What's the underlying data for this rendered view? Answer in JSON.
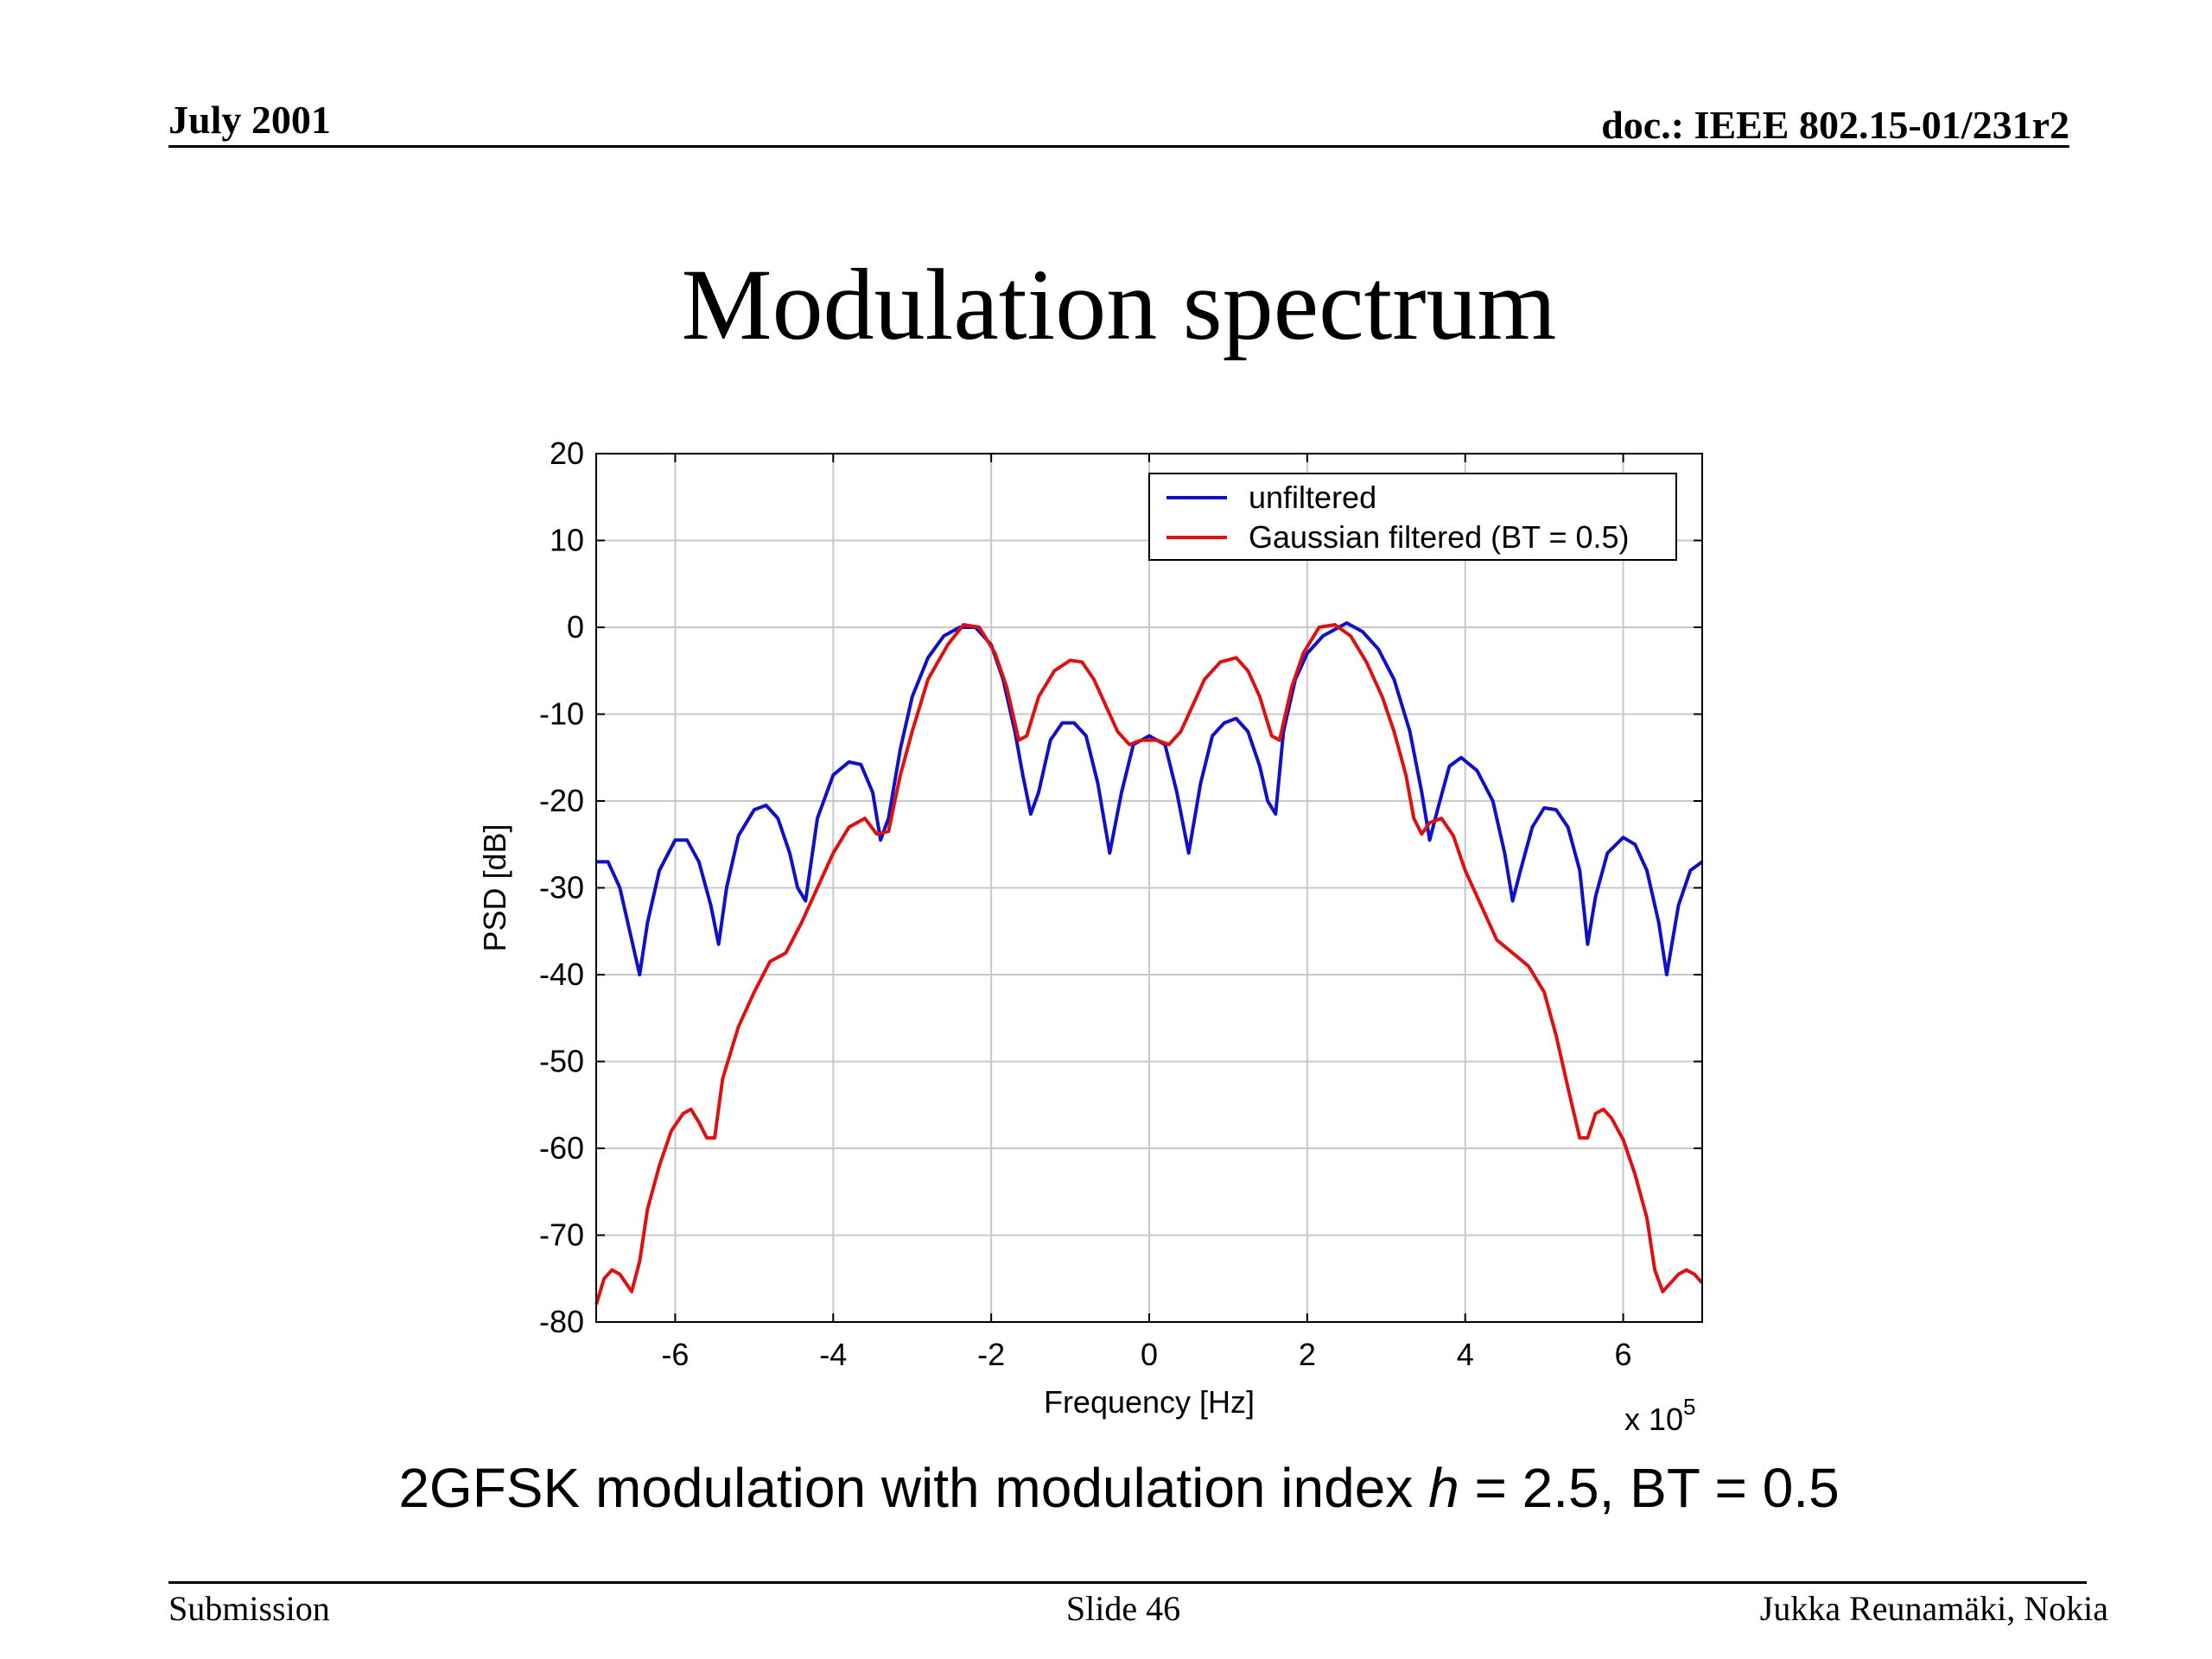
{
  "slide": {
    "header_left": "July 2001",
    "header_right": "doc.: IEEE 802.15-01/231r2",
    "title": "Modulation spectrum",
    "caption_before": "2GFSK modulation with modulation index ",
    "caption_var": "h",
    "caption_after": " = 2.5, BT = 0.5",
    "footer_left": "Submission",
    "footer_center": "Slide 46",
    "footer_right": "Jukka Reunamäki, Nokia"
  },
  "chart_data": {
    "type": "line",
    "title": "",
    "xlabel": "Frequency [Hz]",
    "ylabel": "PSD [dB]",
    "x_multiplier": "x 10",
    "x_multiplier_exp": "5",
    "xlim": [
      -7,
      7
    ],
    "ylim": [
      -80,
      20
    ],
    "xticks": [
      -6,
      -4,
      -2,
      0,
      2,
      4,
      6
    ],
    "yticks": [
      20,
      10,
      0,
      -10,
      -20,
      -30,
      -40,
      -50,
      -60,
      -70,
      -80
    ],
    "grid": true,
    "legend_position": "top-right",
    "series": [
      {
        "name": "unfiltered",
        "color": "#1010c8",
        "points": [
          [
            -7.0,
            -27
          ],
          [
            -6.85,
            -27
          ],
          [
            -6.7,
            -30
          ],
          [
            -6.55,
            -36
          ],
          [
            -6.45,
            -40
          ],
          [
            -6.35,
            -34
          ],
          [
            -6.2,
            -28
          ],
          [
            -6.0,
            -24.5
          ],
          [
            -5.85,
            -24.5
          ],
          [
            -5.7,
            -27
          ],
          [
            -5.55,
            -32
          ],
          [
            -5.45,
            -36.5
          ],
          [
            -5.35,
            -30
          ],
          [
            -5.2,
            -24
          ],
          [
            -5.0,
            -21
          ],
          [
            -4.85,
            -20.5
          ],
          [
            -4.7,
            -22
          ],
          [
            -4.55,
            -26
          ],
          [
            -4.45,
            -30
          ],
          [
            -4.35,
            -31.5
          ],
          [
            -4.2,
            -22
          ],
          [
            -4.0,
            -17
          ],
          [
            -3.8,
            -15.5
          ],
          [
            -3.65,
            -15.8
          ],
          [
            -3.5,
            -19
          ],
          [
            -3.4,
            -24.5
          ],
          [
            -3.3,
            -22
          ],
          [
            -3.15,
            -14
          ],
          [
            -3.0,
            -8
          ],
          [
            -2.8,
            -3.5
          ],
          [
            -2.6,
            -1
          ],
          [
            -2.4,
            0
          ],
          [
            -2.2,
            0
          ],
          [
            -2.0,
            -2
          ],
          [
            -1.85,
            -6
          ],
          [
            -1.7,
            -12
          ],
          [
            -1.6,
            -17
          ],
          [
            -1.5,
            -21.5
          ],
          [
            -1.4,
            -19
          ],
          [
            -1.25,
            -13
          ],
          [
            -1.1,
            -11
          ],
          [
            -0.95,
            -11
          ],
          [
            -0.8,
            -12.5
          ],
          [
            -0.65,
            -18
          ],
          [
            -0.5,
            -26
          ],
          [
            -0.35,
            -19
          ],
          [
            -0.2,
            -13.5
          ],
          [
            0.0,
            -12.5
          ],
          [
            0.2,
            -13.5
          ],
          [
            0.35,
            -19
          ],
          [
            0.5,
            -26
          ],
          [
            0.65,
            -18
          ],
          [
            0.8,
            -12.5
          ],
          [
            0.95,
            -11
          ],
          [
            1.1,
            -10.5
          ],
          [
            1.25,
            -12
          ],
          [
            1.4,
            -16
          ],
          [
            1.5,
            -20
          ],
          [
            1.6,
            -21.5
          ],
          [
            1.7,
            -12
          ],
          [
            1.85,
            -6
          ],
          [
            2.0,
            -3
          ],
          [
            2.2,
            -1
          ],
          [
            2.5,
            0.5
          ],
          [
            2.7,
            -0.5
          ],
          [
            2.9,
            -2.5
          ],
          [
            3.1,
            -6
          ],
          [
            3.3,
            -12
          ],
          [
            3.45,
            -19
          ],
          [
            3.55,
            -24.5
          ],
          [
            3.65,
            -21
          ],
          [
            3.8,
            -16
          ],
          [
            3.95,
            -15
          ],
          [
            4.15,
            -16.5
          ],
          [
            4.35,
            -20
          ],
          [
            4.5,
            -26
          ],
          [
            4.6,
            -31.5
          ],
          [
            4.7,
            -28
          ],
          [
            4.85,
            -23
          ],
          [
            5.0,
            -20.8
          ],
          [
            5.15,
            -21
          ],
          [
            5.3,
            -23
          ],
          [
            5.45,
            -28
          ],
          [
            5.55,
            -36.5
          ],
          [
            5.65,
            -31
          ],
          [
            5.8,
            -26
          ],
          [
            6.0,
            -24.2
          ],
          [
            6.15,
            -25
          ],
          [
            6.3,
            -28
          ],
          [
            6.45,
            -34
          ],
          [
            6.55,
            -40
          ],
          [
            6.7,
            -32
          ],
          [
            6.85,
            -28
          ],
          [
            7.0,
            -27
          ]
        ]
      },
      {
        "name": "Gaussian filtered (BT = 0.5)",
        "color": "#e01010",
        "points": [
          [
            -7.0,
            -78
          ],
          [
            -6.9,
            -75
          ],
          [
            -6.8,
            -74
          ],
          [
            -6.7,
            -74.5
          ],
          [
            -6.55,
            -76.5
          ],
          [
            -6.45,
            -73
          ],
          [
            -6.35,
            -67
          ],
          [
            -6.2,
            -62
          ],
          [
            -6.05,
            -58
          ],
          [
            -5.9,
            -56
          ],
          [
            -5.8,
            -55.5
          ],
          [
            -5.7,
            -57
          ],
          [
            -5.6,
            -58.8
          ],
          [
            -5.5,
            -58.8
          ],
          [
            -5.4,
            -52
          ],
          [
            -5.2,
            -46
          ],
          [
            -5.0,
            -42
          ],
          [
            -4.8,
            -38.5
          ],
          [
            -4.6,
            -37.5
          ],
          [
            -4.4,
            -34
          ],
          [
            -4.2,
            -30
          ],
          [
            -4.0,
            -26
          ],
          [
            -3.8,
            -23
          ],
          [
            -3.6,
            -22
          ],
          [
            -3.45,
            -23.8
          ],
          [
            -3.3,
            -23.5
          ],
          [
            -3.15,
            -17
          ],
          [
            -3.0,
            -12
          ],
          [
            -2.8,
            -6
          ],
          [
            -2.55,
            -2
          ],
          [
            -2.35,
            0.3
          ],
          [
            -2.15,
            0
          ],
          [
            -1.95,
            -3
          ],
          [
            -1.8,
            -7
          ],
          [
            -1.65,
            -13
          ],
          [
            -1.55,
            -12.5
          ],
          [
            -1.4,
            -8
          ],
          [
            -1.2,
            -5
          ],
          [
            -1.0,
            -3.8
          ],
          [
            -0.85,
            -4
          ],
          [
            -0.7,
            -6
          ],
          [
            -0.55,
            -9
          ],
          [
            -0.4,
            -12
          ],
          [
            -0.25,
            -13.5
          ],
          [
            -0.1,
            -13
          ],
          [
            0.1,
            -13
          ],
          [
            0.25,
            -13.5
          ],
          [
            0.4,
            -12
          ],
          [
            0.55,
            -9
          ],
          [
            0.7,
            -6
          ],
          [
            0.9,
            -4
          ],
          [
            1.1,
            -3.5
          ],
          [
            1.25,
            -5
          ],
          [
            1.4,
            -8
          ],
          [
            1.55,
            -12.5
          ],
          [
            1.65,
            -13
          ],
          [
            1.8,
            -7
          ],
          [
            1.95,
            -3
          ],
          [
            2.15,
            0
          ],
          [
            2.35,
            0.3
          ],
          [
            2.55,
            -1
          ],
          [
            2.75,
            -4
          ],
          [
            2.95,
            -8
          ],
          [
            3.1,
            -12
          ],
          [
            3.25,
            -17
          ],
          [
            3.35,
            -22
          ],
          [
            3.45,
            -23.8
          ],
          [
            3.55,
            -22.5
          ],
          [
            3.7,
            -22
          ],
          [
            3.85,
            -24
          ],
          [
            4.0,
            -28
          ],
          [
            4.2,
            -32
          ],
          [
            4.4,
            -36
          ],
          [
            4.6,
            -37.5
          ],
          [
            4.8,
            -39
          ],
          [
            5.0,
            -42
          ],
          [
            5.15,
            -47
          ],
          [
            5.3,
            -53
          ],
          [
            5.45,
            -58.8
          ],
          [
            5.55,
            -58.8
          ],
          [
            5.65,
            -56
          ],
          [
            5.75,
            -55.5
          ],
          [
            5.85,
            -56.5
          ],
          [
            6.0,
            -59
          ],
          [
            6.15,
            -63
          ],
          [
            6.3,
            -68
          ],
          [
            6.4,
            -74
          ],
          [
            6.5,
            -76.5
          ],
          [
            6.6,
            -75.5
          ],
          [
            6.7,
            -74.5
          ],
          [
            6.8,
            -74
          ],
          [
            6.9,
            -74.5
          ],
          [
            7.0,
            -75.5
          ]
        ]
      }
    ]
  }
}
